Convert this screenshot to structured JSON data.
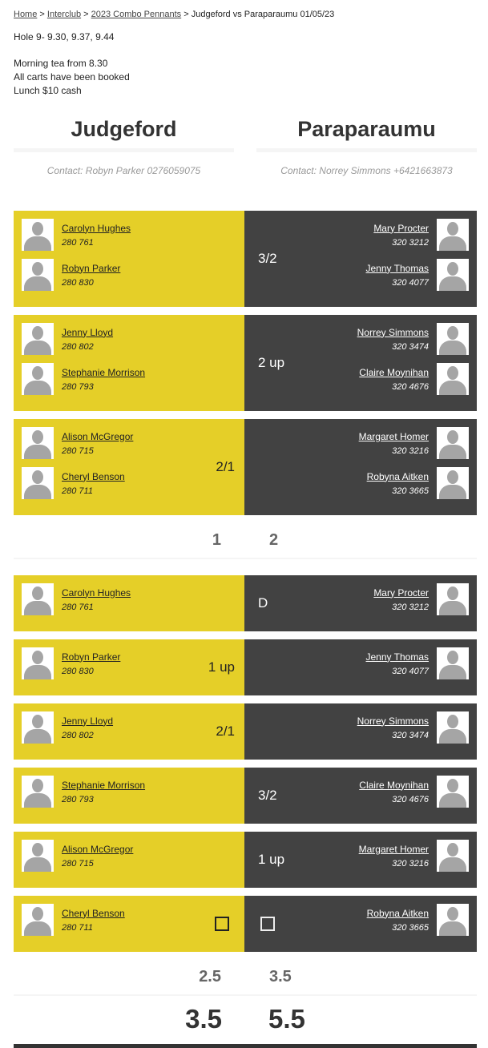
{
  "breadcrumb": {
    "links": [
      "Home",
      "Interclub",
      "2023 Combo Pennants"
    ],
    "current": "Judgeford vs Paraparaumu 01/05/23"
  },
  "notes": {
    "line1": "Hole 9- 9.30, 9.37, 9.44",
    "line2": "Morning tea from 8.30",
    "line3": "All carts have been booked",
    "line4": "Lunch $10 cash"
  },
  "teams": {
    "home": {
      "name": "Judgeford",
      "contact": "Contact: Robyn Parker 0276059075"
    },
    "away": {
      "name": "Paraparaumu",
      "contact": "Contact: Norrey Simmons +6421663873"
    }
  },
  "colors": {
    "home": "#e5cf28",
    "away": "#424242"
  },
  "sections": [
    {
      "matches": [
        {
          "home": [
            {
              "name": "Carolyn Hughes",
              "hcp": "280 761"
            },
            {
              "name": "Robyn Parker",
              "hcp": "280 830"
            }
          ],
          "away": [
            {
              "name": "Mary Procter",
              "hcp": "320 3212"
            },
            {
              "name": "Jenny Thomas",
              "hcp": "320 4077"
            }
          ],
          "winner": "away",
          "result": "3/2"
        },
        {
          "home": [
            {
              "name": "Jenny Lloyd",
              "hcp": "280 802"
            },
            {
              "name": "Stephanie Morrison",
              "hcp": "280 793"
            }
          ],
          "away": [
            {
              "name": "Norrey Simmons",
              "hcp": "320 3474"
            },
            {
              "name": "Claire Moynihan",
              "hcp": "320 4676"
            }
          ],
          "winner": "away",
          "result": "2 up"
        },
        {
          "home": [
            {
              "name": "Alison McGregor",
              "hcp": "280 715"
            },
            {
              "name": "Cheryl Benson",
              "hcp": "280 711"
            }
          ],
          "away": [
            {
              "name": "Margaret Homer",
              "hcp": "320 3216"
            },
            {
              "name": "Robyna Aitken",
              "hcp": "320 3665"
            }
          ],
          "winner": "home",
          "result": "2/1"
        }
      ],
      "subtotal": {
        "home": "1",
        "away": "2"
      }
    },
    {
      "matches": [
        {
          "home": [
            {
              "name": "Carolyn Hughes",
              "hcp": "280 761"
            }
          ],
          "away": [
            {
              "name": "Mary Procter",
              "hcp": "320 3212"
            }
          ],
          "winner": "away",
          "result": "D"
        },
        {
          "home": [
            {
              "name": "Robyn Parker",
              "hcp": "280 830"
            }
          ],
          "away": [
            {
              "name": "Jenny Thomas",
              "hcp": "320 4077"
            }
          ],
          "winner": "home",
          "result": "1 up"
        },
        {
          "home": [
            {
              "name": "Jenny Lloyd",
              "hcp": "280 802"
            }
          ],
          "away": [
            {
              "name": "Norrey Simmons",
              "hcp": "320 3474"
            }
          ],
          "winner": "home",
          "result": "2/1"
        },
        {
          "home": [
            {
              "name": "Stephanie Morrison",
              "hcp": "280 793"
            }
          ],
          "away": [
            {
              "name": "Claire Moynihan",
              "hcp": "320 4676"
            }
          ],
          "winner": "away",
          "result": "3/2"
        },
        {
          "home": [
            {
              "name": "Alison McGregor",
              "hcp": "280 715"
            }
          ],
          "away": [
            {
              "name": "Margaret Homer",
              "hcp": "320 3216"
            }
          ],
          "winner": "away",
          "result": "1 up"
        },
        {
          "home": [
            {
              "name": "Cheryl Benson",
              "hcp": "280 711"
            }
          ],
          "away": [
            {
              "name": "Robyna Aitken",
              "hcp": "320 3665"
            }
          ],
          "winner": "none",
          "result": ""
        }
      ],
      "subtotal": {
        "home": "2.5",
        "away": "3.5"
      }
    }
  ],
  "total": {
    "home": "3.5",
    "away": "5.5"
  }
}
